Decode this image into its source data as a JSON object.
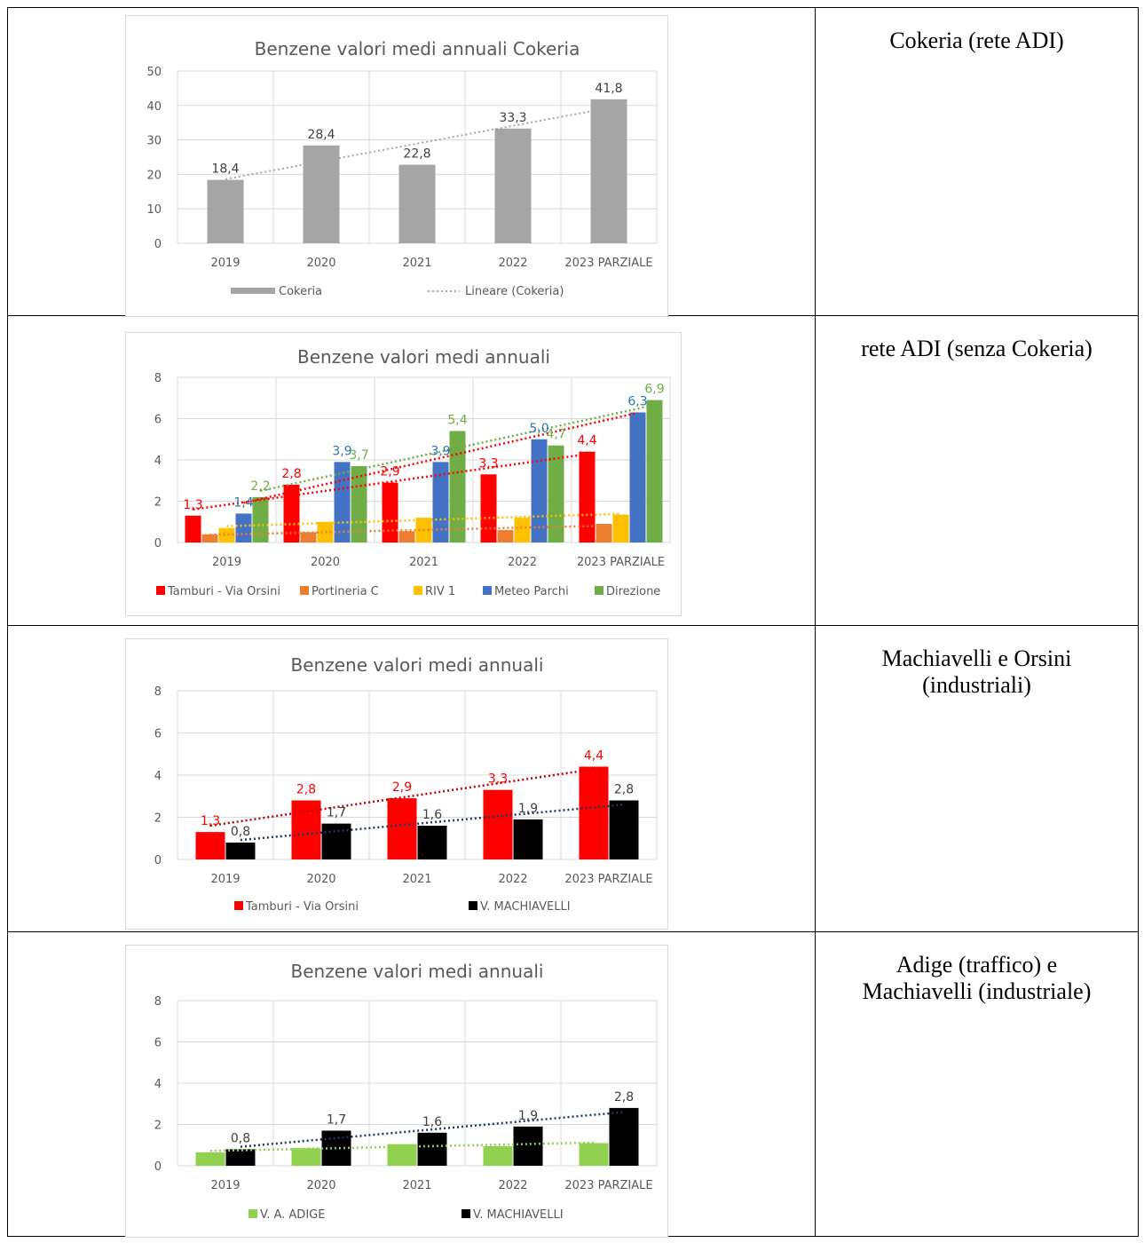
{
  "colors": {
    "grey_bar": "#a5a5a5",
    "trend_grey": "#a5a5a5",
    "red": "#ff0000",
    "orange": "#ed7d31",
    "yellow": "#ffc000",
    "blue": "#4472c4",
    "green": "#70ad47",
    "light_green": "#92d050",
    "black": "#000000",
    "dark_navy": "#1f3864",
    "axis_text": "#595959",
    "grid": "#d9d9d9",
    "label_blue": "#2e75b6"
  },
  "rows": [
    {
      "label": "Cokeria (rete ADI)"
    },
    {
      "label": "rete ADI (senza Cokeria)"
    },
    {
      "label": "Machiavelli e Orsini\n(industriali)"
    },
    {
      "label": "Adige (traffico) e\nMachiavelli (industriale)"
    }
  ],
  "chart_data": [
    {
      "type": "bar",
      "title": "Benzene valori medi annuali  Cokeria",
      "categories": [
        "2019",
        "2020",
        "2021",
        "2022",
        "2023 PARZIALE"
      ],
      "ylim": [
        0,
        50
      ],
      "yticks": [
        "0",
        "10",
        "20",
        "30",
        "40",
        "50"
      ],
      "grid": true,
      "legend_position": "bottom",
      "series": [
        {
          "name": "Cokeria",
          "values": [
            18.4,
            28.4,
            22.8,
            33.3,
            41.8
          ],
          "labels": [
            "18,4",
            "28,4",
            "22,8",
            "33,3",
            "41,8"
          ],
          "color": "#a5a5a5",
          "label_color": "#404040"
        }
      ],
      "trendlines": [
        {
          "name": "Lineare (Cokeria)",
          "series": 0,
          "color": "#a5a5a5"
        }
      ]
    },
    {
      "type": "bar",
      "title": "Benzene valori medi annuali",
      "categories": [
        "2019",
        "2020",
        "2021",
        "2022",
        "2023 PARZIALE"
      ],
      "ylim": [
        0,
        8
      ],
      "yticks": [
        "0",
        "2",
        "4",
        "6",
        "8"
      ],
      "grid": true,
      "legend_position": "bottom",
      "series": [
        {
          "name": "Tamburi - Via Orsini",
          "values": [
            1.3,
            2.8,
            2.9,
            3.3,
            4.4
          ],
          "labels": [
            "1,3",
            "2,8",
            "2,9",
            "3,3",
            "4,4"
          ],
          "color": "#ff0000",
          "label_color": "#ff0000"
        },
        {
          "name": "Portineria C",
          "values": [
            0.4,
            0.5,
            0.55,
            0.6,
            0.9
          ],
          "labels": [],
          "color": "#ed7d31"
        },
        {
          "name": "RIV 1",
          "values": [
            0.7,
            1.0,
            1.2,
            1.2,
            1.35
          ],
          "labels": [],
          "color": "#ffc000"
        },
        {
          "name": "Meteo Parchi",
          "values": [
            1.4,
            3.9,
            3.9,
            5.0,
            6.3
          ],
          "labels": [
            "1,4",
            "3,9",
            "3,9",
            "5,0",
            "6,3"
          ],
          "color": "#4472c4",
          "label_color": "#2e75b6"
        },
        {
          "name": "Direzione",
          "values": [
            2.2,
            3.7,
            5.4,
            4.7,
            6.9
          ],
          "labels": [
            "2,2",
            "3,7",
            "5,4",
            "4,7",
            "6,9"
          ],
          "color": "#70ad47",
          "label_color": "#70ad47"
        }
      ],
      "trendlines": [
        {
          "series": 0,
          "color": "#ff0000"
        },
        {
          "series": 1,
          "color": "#ed7d31"
        },
        {
          "series": 2,
          "color": "#ffc000"
        },
        {
          "series": 3,
          "color": "#ff0000"
        },
        {
          "series": 4,
          "color": "#70ad47"
        }
      ]
    },
    {
      "type": "bar",
      "title": "Benzene valori medi annuali",
      "categories": [
        "2019",
        "2020",
        "2021",
        "2022",
        "2023 PARZIALE"
      ],
      "ylim": [
        0,
        8
      ],
      "yticks": [
        "0",
        "2",
        "4",
        "6",
        "8"
      ],
      "grid": true,
      "legend_position": "bottom",
      "series": [
        {
          "name": "Tamburi - Via Orsini",
          "values": [
            1.3,
            2.8,
            2.9,
            3.3,
            4.4
          ],
          "labels": [
            "1,3",
            "2,8",
            "2,9",
            "3,3",
            "4,4"
          ],
          "color": "#ff0000",
          "label_color": "#ff0000"
        },
        {
          "name": "V. MACHIAVELLI",
          "values": [
            0.8,
            1.7,
            1.6,
            1.9,
            2.8
          ],
          "labels": [
            "0,8",
            "1,7",
            "1,6",
            "1,9",
            "2,8"
          ],
          "color": "#000000",
          "label_color": "#404040"
        }
      ],
      "trendlines": [
        {
          "series": 0,
          "color": "#c00000"
        },
        {
          "series": 1,
          "color": "#1f3864"
        }
      ]
    },
    {
      "type": "bar",
      "title": "Benzene valori medi annuali",
      "categories": [
        "2019",
        "2020",
        "2021",
        "2022",
        "2023 PARZIALE"
      ],
      "ylim": [
        0,
        8
      ],
      "yticks": [
        "0",
        "2",
        "4",
        "6",
        "8"
      ],
      "grid": true,
      "legend_position": "bottom",
      "series": [
        {
          "name": "V. A. ADIGE",
          "values": [
            0.65,
            0.85,
            1.05,
            0.95,
            1.1
          ],
          "labels": [],
          "color": "#92d050"
        },
        {
          "name": "V. MACHIAVELLI",
          "values": [
            0.8,
            1.7,
            1.6,
            1.9,
            2.8
          ],
          "labels": [
            "0,8",
            "1,7",
            "1,6",
            "1,9",
            "2,8"
          ],
          "color": "#000000",
          "label_color": "#404040"
        }
      ],
      "trendlines": [
        {
          "series": 0,
          "color": "#92d050"
        },
        {
          "series": 1,
          "color": "#1f3864"
        }
      ]
    }
  ]
}
